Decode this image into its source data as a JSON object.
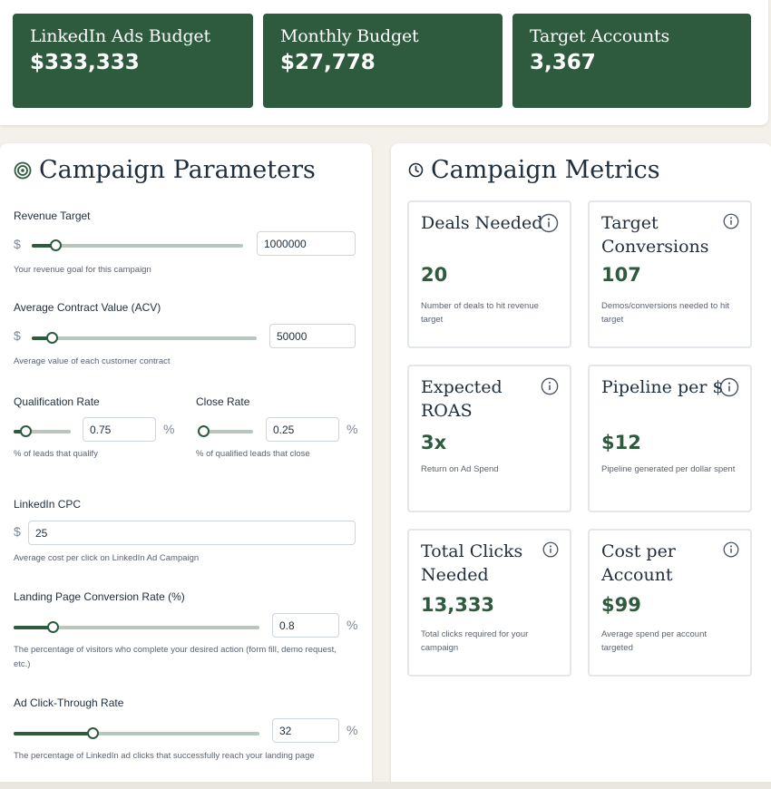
{
  "summary": {
    "cards": [
      {
        "title": "LinkedIn Ads Budget",
        "value": "$333,333"
      },
      {
        "title": "Monthly Budget",
        "value": "$27,778"
      },
      {
        "title": "Target Accounts",
        "value": "3,367"
      }
    ]
  },
  "parameters": {
    "title": "Campaign Parameters",
    "icon": "target-icon",
    "revenue": {
      "label": "Revenue Target",
      "currency": "$",
      "value": "1000000",
      "slider": 0.11,
      "help": "Your revenue goal for this campaign"
    },
    "acv": {
      "label": "Average Contract Value (ACV)",
      "currency": "$",
      "value": "50000",
      "slider": 0.09,
      "help": "Average value of each customer contract"
    },
    "qualification": {
      "label": "Qualification Rate",
      "value": "0.75",
      "unit": "%",
      "slider": 0.2,
      "help": "% of leads that qualify"
    },
    "close": {
      "label": "Close Rate",
      "value": "0.25",
      "unit": "%",
      "slider": 0.1,
      "help": "% of qualified leads that close"
    },
    "cpc": {
      "label": "LinkedIn CPC",
      "currency": "$",
      "value": "25",
      "help": "Average cost per click on LinkedIn Ad Campaign"
    },
    "lp_conversion": {
      "label": "Landing Page Conversion Rate (%)",
      "value": "0.8",
      "unit": "%",
      "slider": 0.16,
      "help": "The percentage of visitors who complete your desired action (form fill, demo request, etc.)"
    },
    "ctr": {
      "label": "Ad Click-Through Rate",
      "value": "32",
      "unit": "%",
      "slider": 0.32,
      "help": "The percentage of LinkedIn ad clicks that successfully reach your landing page"
    }
  },
  "metrics": {
    "title": "Campaign Metrics",
    "icon": "clock-icon",
    "cards": [
      {
        "title": "Deals Needed",
        "value": "20",
        "desc": "Number of deals to hit revenue target"
      },
      {
        "title": "Target Conversions",
        "value": "107",
        "desc": "Demos/conversions needed to hit target"
      },
      {
        "title": "Expected ROAS",
        "value": "3x",
        "desc": "Return on Ad Spend"
      },
      {
        "title": "Pipeline per $",
        "value": "$12",
        "desc": "Pipeline generated per dollar spent"
      },
      {
        "title": "Total Clicks Needed",
        "value": "13,333",
        "desc": "Total clicks required for your campaign"
      },
      {
        "title": "Cost per Account",
        "value": "$99",
        "desc": "Average spend per account targeted"
      }
    ]
  },
  "colors": {
    "brand": "#2e5b3e",
    "track": "#b8c6bd"
  }
}
